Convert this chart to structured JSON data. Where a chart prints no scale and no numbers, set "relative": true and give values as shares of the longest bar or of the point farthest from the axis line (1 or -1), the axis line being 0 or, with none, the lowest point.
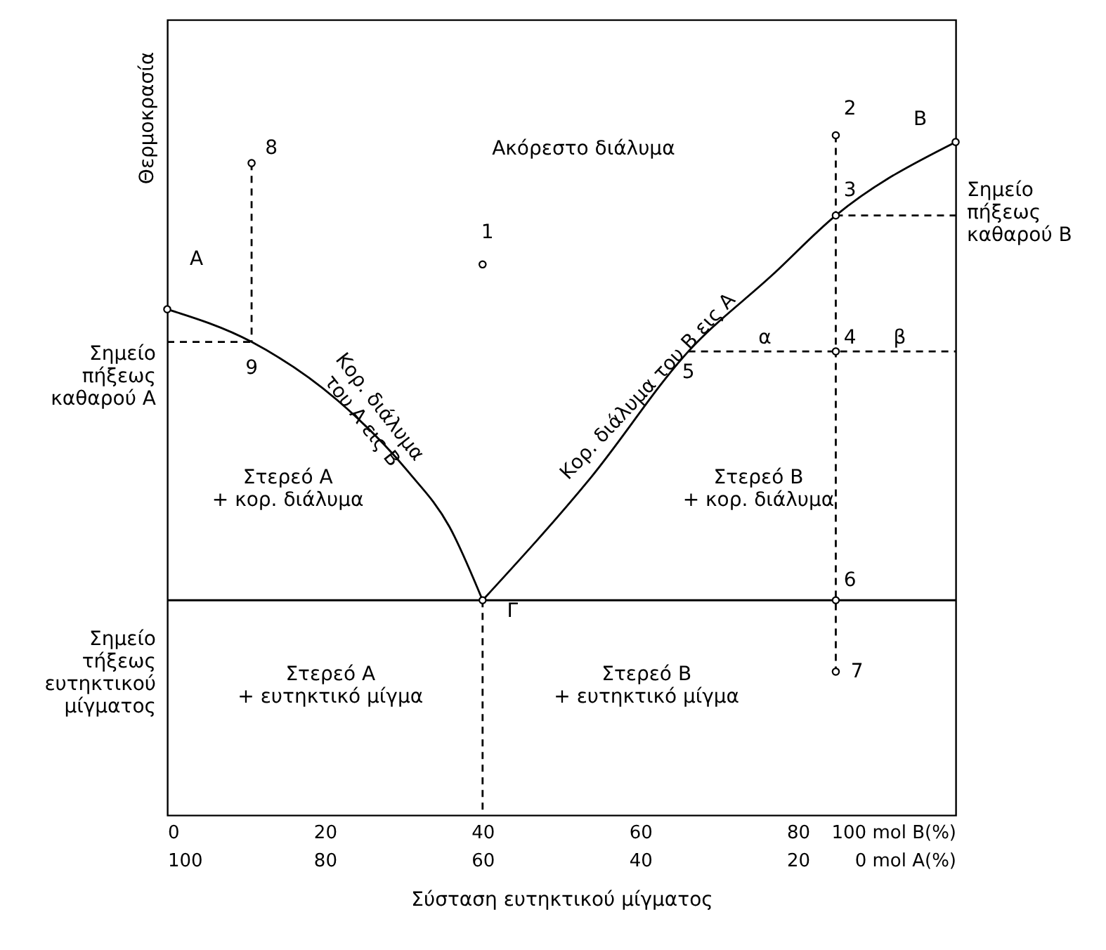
{
  "chart_data": {
    "type": "line",
    "relative": true,
    "xlabel": "Σύσταση ευτηκτικού μίγματος",
    "ylabel": "Θερμοκρασία",
    "xlim": [
      0,
      100
    ],
    "xticks": [
      0,
      20,
      40,
      60,
      80,
      {
        "value": 100,
        "label": "100 mol Β(%)"
      }
    ],
    "x2lim": [
      100,
      0
    ],
    "x2ticks": [
      100,
      80,
      60,
      40,
      20,
      {
        "value": 0,
        "label": "0 mol Α(%)"
      }
    ],
    "grid": false,
    "series": [
      {
        "color": "#000000",
        "line_style": "solid",
        "x": [
          0,
          10.7,
          21.6,
          30.5,
          35.8,
          40
        ],
        "values": [
          0.744,
          0.696,
          0.61,
          0.506,
          0.424,
          0.316
        ]
      },
      {
        "color": "#000000",
        "line_style": "solid",
        "x": [
          40,
          53.7,
          66.1,
          76.8,
          84.8,
          100
        ],
        "values": [
          0.316,
          0.496,
          0.682,
          0.795,
          0.882,
          0.99
        ]
      },
      {
        "color": "#000000",
        "line_style": "solid",
        "x": [
          0,
          100
        ],
        "values": [
          0.316,
          0.316
        ]
      },
      {
        "color": "#000000",
        "line_style": "dashed",
        "x": [
          40,
          40
        ],
        "values": [
          0.316,
          0
        ]
      },
      {
        "color": "#000000",
        "line_style": "dashed",
        "x": [
          84.8,
          84.8
        ],
        "values": [
          1.0,
          0.211
        ]
      },
      {
        "color": "#000000",
        "line_style": "dashed",
        "x": [
          10.7,
          10.7
        ],
        "values": [
          0.959,
          0.696
        ]
      },
      {
        "color": "#000000",
        "line_style": "dashed",
        "x": [
          0,
          10.7
        ],
        "values": [
          0.696,
          0.696
        ]
      },
      {
        "color": "#000000",
        "line_style": "dashed",
        "x": [
          84.8,
          100
        ],
        "values": [
          0.882,
          0.882
        ]
      },
      {
        "color": "#000000",
        "line_style": "dashed",
        "x": [
          66.1,
          100
        ],
        "values": [
          0.682,
          0.682
        ]
      },
      {
        "type": "scatter",
        "color": "#000000",
        "marker": "circle",
        "x": [
          0,
          100,
          40,
          40,
          84.8,
          84.8,
          84.8,
          84.8,
          84.8,
          10.7
        ],
        "values": [
          0.744,
          0.99,
          0.316,
          0.81,
          1.0,
          0.882,
          0.682,
          0.316,
          0.211,
          0.959
        ]
      }
    ],
    "annotations": [
      "Ακόρεστο διάλυμα",
      "Στερεό Α\n+ κορ. διάλυμα",
      "Στερεό Β\n+ κορ. διάλυμα",
      "Στερεό Α\n+ ευτηκτικό μίγμα",
      "Στερεό Β\n+ ευτηκτικό μίγμα",
      "Κορ. διάλυμα\nτου Α εις Β",
      "Κορ. διάλυμα του Β εις Α",
      "Σημείο\nπήξεως\nκαθαρού Α",
      "Σημείο\nτήξεως\nευτηκτικού\nμίγματος",
      "Σημείο\nπήξεως\nκαθαρού Β",
      "Α",
      "Β",
      "Γ",
      "1",
      "2",
      "3",
      "4",
      "5",
      "6",
      "7",
      "8",
      "9",
      "α",
      "β"
    ]
  }
}
